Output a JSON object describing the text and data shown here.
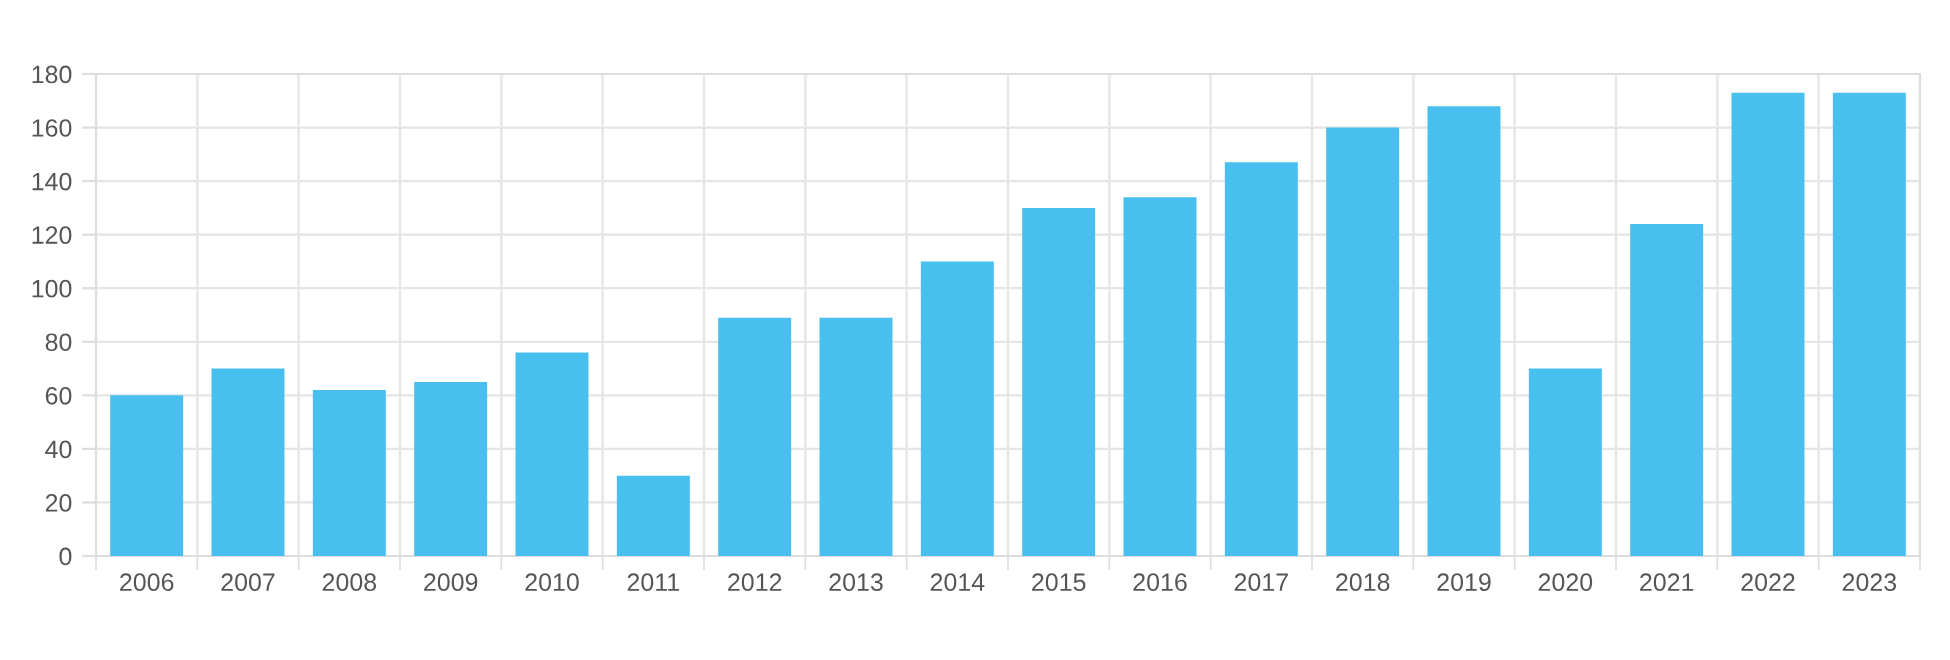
{
  "chart_data": {
    "type": "bar",
    "categories": [
      "2006",
      "2007",
      "2008",
      "2009",
      "2010",
      "2011",
      "2012",
      "2013",
      "2014",
      "2015",
      "2016",
      "2017",
      "2018",
      "2019",
      "2020",
      "2021",
      "2022",
      "2023"
    ],
    "values": [
      60,
      70,
      62,
      65,
      76,
      30,
      89,
      89,
      110,
      130,
      134,
      147,
      160,
      168,
      70,
      124,
      173,
      173
    ],
    "color": "#48bfef",
    "ylim": [
      0,
      180
    ],
    "yticks": [
      0,
      20,
      40,
      60,
      80,
      100,
      120,
      140,
      160,
      180
    ],
    "grid": true,
    "legend": false
  }
}
